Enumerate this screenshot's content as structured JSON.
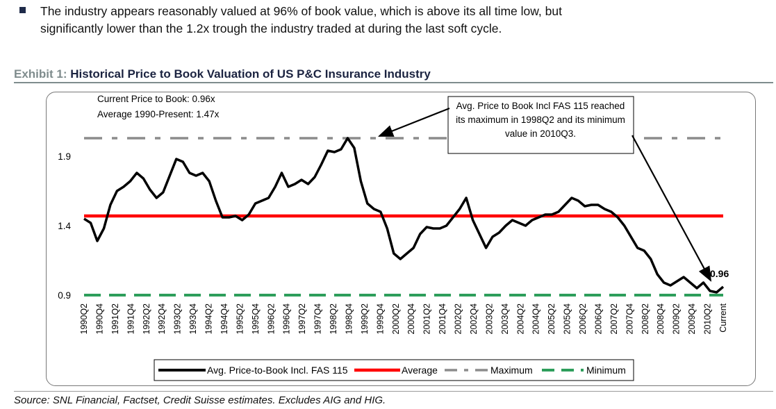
{
  "bullet": {
    "text": "The industry appears reasonably valued at 96% of book value, which is above its all time low, but significantly lower than the 1.2x trough the industry traded at during the last soft cycle."
  },
  "exhibit": {
    "number": "Exhibit 1:",
    "title": "Historical Price to Book Valuation of US P&C Insurance Industry"
  },
  "source": "Source: SNL Financial, Factset, Credit Suisse estimates. Excludes AIG and HIG.",
  "colors": {
    "series": "#000000",
    "average": "#ff0000",
    "maximum": "#8c8c8c",
    "minimum": "#2e9e5b"
  },
  "chart_data": {
    "type": "line",
    "title": "",
    "info_lines": [
      "Current Price to Book: 0.96x",
      "Average 1990-Present:  1.47x"
    ],
    "annotation": "Avg. Price to Book Incl FAS 115 reached its maximum in 1998Q2 and its minimum value in 2010Q3.",
    "current_label": "0.96",
    "ylim": [
      0.9,
      2.1
    ],
    "yticks": [
      0.9,
      1.4,
      1.9
    ],
    "ytick_labels": [
      "0.9",
      "1.4",
      "1.9"
    ],
    "xtick_labels": [
      "1990Q2",
      "1990Q4",
      "1991Q2",
      "1991Q4",
      "1992Q2",
      "1992Q4",
      "1993Q2",
      "1993Q4",
      "1994Q2",
      "1994Q4",
      "1995Q2",
      "1995Q4",
      "1996Q2",
      "1996Q4",
      "1997Q2",
      "1997Q4",
      "1998Q2",
      "1998Q4",
      "1999Q2",
      "1999Q4",
      "2000Q2",
      "2000Q4",
      "2001Q2",
      "2001Q4",
      "2002Q2",
      "2002Q4",
      "2003Q2",
      "2003Q4",
      "2004Q2",
      "2004Q4",
      "2005Q2",
      "2005Q4",
      "2006Q2",
      "2006Q4",
      "2007Q2",
      "2007Q4",
      "2008Q2",
      "2008Q4",
      "2009Q2",
      "2009Q4",
      "2010Q2",
      "Current"
    ],
    "legend_position": "bottom",
    "grid": false,
    "series": [
      {
        "name": "Avg. Price-to-Book Incl. FAS 115",
        "values": [
          1.45,
          1.42,
          1.29,
          1.38,
          1.55,
          1.65,
          1.68,
          1.72,
          1.78,
          1.74,
          1.66,
          1.6,
          1.64,
          1.76,
          1.88,
          1.86,
          1.78,
          1.76,
          1.78,
          1.72,
          1.58,
          1.46,
          1.46,
          1.47,
          1.44,
          1.48,
          1.56,
          1.58,
          1.6,
          1.68,
          1.78,
          1.68,
          1.7,
          1.73,
          1.7,
          1.75,
          1.84,
          1.94,
          1.93,
          1.95,
          2.03,
          1.96,
          1.72,
          1.56,
          1.52,
          1.5,
          1.38,
          1.2,
          1.16,
          1.2,
          1.24,
          1.34,
          1.39,
          1.38,
          1.38,
          1.4,
          1.46,
          1.52,
          1.6,
          1.44,
          1.34,
          1.24,
          1.32,
          1.35,
          1.4,
          1.44,
          1.42,
          1.4,
          1.44,
          1.46,
          1.48,
          1.48,
          1.5,
          1.55,
          1.6,
          1.58,
          1.54,
          1.55,
          1.55,
          1.52,
          1.5,
          1.46,
          1.4,
          1.32,
          1.24,
          1.22,
          1.16,
          1.05,
          0.99,
          0.97,
          1.0,
          1.03,
          0.99,
          0.95,
          0.99,
          0.93,
          0.92,
          0.96
        ]
      },
      {
        "name": "Average",
        "values": [
          1.47
        ]
      },
      {
        "name": "Maximum",
        "values": [
          2.03
        ]
      },
      {
        "name": "Minimum",
        "values": [
          0.9
        ]
      }
    ]
  }
}
